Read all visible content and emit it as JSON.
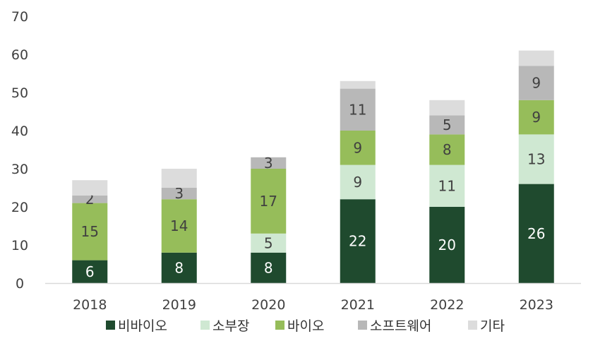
{
  "chart_data": {
    "type": "bar",
    "stacked": true,
    "title": "",
    "xlabel": "",
    "ylabel": "",
    "ylim": [
      0,
      70
    ],
    "yticks": [
      0,
      10,
      20,
      30,
      40,
      50,
      60,
      70
    ],
    "grid": false,
    "legend_position": "bottom",
    "categories": [
      "2018",
      "2019",
      "2020",
      "2021",
      "2022",
      "2023"
    ],
    "series": [
      {
        "name": "비바이오",
        "color": "#1f4a2e",
        "label_color": "#ffffff",
        "values": [
          6,
          8,
          8,
          22,
          20,
          26
        ]
      },
      {
        "name": "소부장",
        "color": "#cfe8d2",
        "label_color": "#404040",
        "values": [
          0,
          0,
          5,
          9,
          11,
          13
        ]
      },
      {
        "name": "바이오",
        "color": "#96bd5a",
        "label_color": "#404040",
        "values": [
          15,
          14,
          17,
          9,
          8,
          9
        ]
      },
      {
        "name": "소프트웨어",
        "color": "#b8b8b8",
        "label_color": "#404040",
        "values": [
          2,
          3,
          3,
          11,
          5,
          9
        ]
      },
      {
        "name": "기타",
        "color": "#dcdcdc",
        "label_color": "#404040",
        "values": [
          4,
          5,
          0,
          2,
          4,
          4
        ]
      }
    ],
    "data_labels": {
      "비바이오": [
        "6",
        "8",
        "8",
        "22",
        "20",
        "26"
      ],
      "소부장": [
        "",
        "",
        "5",
        "9",
        "11",
        "13"
      ],
      "바이오": [
        "15",
        "14",
        "17",
        "9",
        "8",
        "9"
      ],
      "소프트웨어": [
        "2",
        "3",
        "3",
        "11",
        "5",
        "9"
      ],
      "기타": [
        "",
        "",
        "",
        "",
        "",
        ""
      ]
    }
  }
}
